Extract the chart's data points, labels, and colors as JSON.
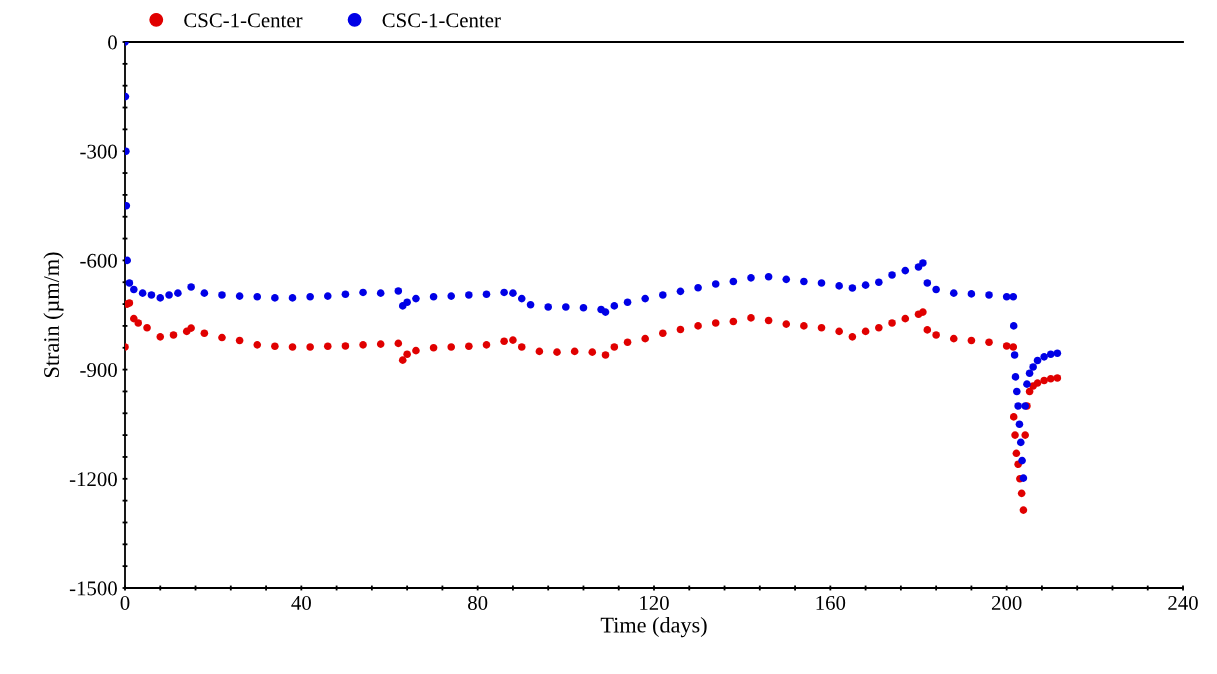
{
  "chart_data": {
    "type": "scatter",
    "xlabel": "Time (days)",
    "ylabel": "Strain (µm/m)",
    "xlim": [
      0,
      240
    ],
    "ylim": [
      -1500,
      0
    ],
    "xticks": [
      0,
      {
        "value": 8,
        "label": null
      },
      {
        "value": 16,
        "label": null
      },
      {
        "value": 24,
        "label": null
      },
      {
        "value": 32,
        "label": null
      },
      40,
      {
        "value": 48,
        "label": null
      },
      {
        "value": 56,
        "label": null
      },
      {
        "value": 64,
        "label": null
      },
      {
        "value": 72,
        "label": null
      },
      80,
      {
        "value": 88,
        "label": null
      },
      {
        "value": 96,
        "label": null
      },
      {
        "value": 104,
        "label": null
      },
      {
        "value": 112,
        "label": null
      },
      120,
      {
        "value": 128,
        "label": null
      },
      {
        "value": 136,
        "label": null
      },
      {
        "value": 144,
        "label": null
      },
      {
        "value": 152,
        "label": null
      },
      160,
      {
        "value": 168,
        "label": null
      },
      {
        "value": 176,
        "label": null
      },
      {
        "value": 184,
        "label": null
      },
      {
        "value": 192,
        "label": null
      },
      200,
      {
        "value": 208,
        "label": null
      },
      {
        "value": 216,
        "label": null
      },
      {
        "value": 224,
        "label": null
      },
      {
        "value": 232,
        "label": null
      },
      240
    ],
    "yticks": [
      -1500,
      {
        "value": -1440,
        "label": null
      },
      {
        "value": -1380,
        "label": null
      },
      {
        "value": -1320,
        "label": null
      },
      {
        "value": -1260,
        "label": null
      },
      -1200,
      {
        "value": -1140,
        "label": null
      },
      {
        "value": -1080,
        "label": null
      },
      {
        "value": -1020,
        "label": null
      },
      {
        "value": -960,
        "label": null
      },
      -900,
      {
        "value": -840,
        "label": null
      },
      {
        "value": -780,
        "label": null
      },
      {
        "value": -720,
        "label": null
      },
      {
        "value": -660,
        "label": null
      },
      -600,
      {
        "value": -540,
        "label": null
      },
      {
        "value": -480,
        "label": null
      },
      {
        "value": -420,
        "label": null
      },
      {
        "value": -360,
        "label": null
      },
      -300,
      {
        "value": -240,
        "label": null
      },
      {
        "value": -180,
        "label": null
      },
      {
        "value": -120,
        "label": null
      },
      {
        "value": -60,
        "label": null
      },
      0
    ],
    "grid": false,
    "legend": "top left",
    "marker": "circle",
    "series": [
      {
        "name": "CSC-1-Center",
        "color": "#e00000",
        "x": [
          0,
          0.5,
          1,
          2,
          3,
          5,
          8,
          11,
          14,
          15,
          18,
          22,
          26,
          30,
          34,
          38,
          42,
          46,
          50,
          54,
          58,
          62,
          63,
          64,
          66,
          70,
          74,
          78,
          82,
          86,
          88,
          90,
          94,
          98,
          102,
          106,
          109,
          111,
          114,
          118,
          122,
          126,
          130,
          134,
          138,
          142,
          146,
          150,
          154,
          158,
          162,
          165,
          168,
          171,
          174,
          177,
          180,
          181,
          182,
          184,
          188,
          192,
          196,
          200,
          201.5,
          201.6,
          201.9,
          202.2,
          202.6,
          203,
          203.4,
          203.8,
          204.2,
          204.6,
          205.2,
          206,
          207,
          208.5,
          210,
          211.5
        ],
        "values": [
          -838,
          -720,
          -717,
          -760,
          -772,
          -785,
          -810,
          -805,
          -795,
          -786,
          -800,
          -812,
          -820,
          -832,
          -836,
          -838,
          -838,
          -836,
          -835,
          -832,
          -830,
          -828,
          -874,
          -858,
          -848,
          -840,
          -838,
          -836,
          -832,
          -822,
          -819,
          -838,
          -850,
          -852,
          -850,
          -852,
          -860,
          -838,
          -825,
          -815,
          -800,
          -790,
          -780,
          -772,
          -768,
          -758,
          -765,
          -775,
          -780,
          -785,
          -795,
          -810,
          -795,
          -785,
          -772,
          -760,
          -748,
          -742,
          -791,
          -805,
          -815,
          -820,
          -825,
          -835,
          -838,
          -1030,
          -1080,
          -1130,
          -1160,
          -1200,
          -1240,
          -1286,
          -1080,
          -1000,
          -960,
          -945,
          -937,
          -930,
          -925,
          -923
        ]
      },
      {
        "name": "CSC-1-Center",
        "color": "#0000e6",
        "x": [
          0,
          0.1,
          0.2,
          0.3,
          0.5,
          1,
          2,
          4,
          6,
          8,
          10,
          12,
          15,
          18,
          22,
          26,
          30,
          34,
          38,
          42,
          46,
          50,
          54,
          58,
          62,
          63,
          64,
          66,
          70,
          74,
          78,
          82,
          86,
          88,
          90,
          92,
          96,
          100,
          104,
          108,
          109,
          111,
          114,
          118,
          122,
          126,
          130,
          134,
          138,
          142,
          146,
          150,
          154,
          158,
          162,
          165,
          168,
          171,
          174,
          177,
          180,
          181,
          182,
          184,
          188,
          192,
          196,
          200,
          201.5,
          201.6,
          201.8,
          202,
          202.3,
          202.6,
          202.9,
          203.2,
          203.5,
          203.8,
          204.2,
          204.6,
          205.2,
          206,
          207,
          208.5,
          210,
          211.5
        ],
        "values": [
          0,
          -150,
          -300,
          -450,
          -600,
          -662,
          -680,
          -690,
          -695,
          -703,
          -695,
          -690,
          -673,
          -690,
          -695,
          -698,
          -700,
          -703,
          -703,
          -700,
          -698,
          -693,
          -688,
          -690,
          -684,
          -725,
          -715,
          -705,
          -700,
          -698,
          -695,
          -693,
          -688,
          -690,
          -705,
          -722,
          -728,
          -728,
          -730,
          -735,
          -742,
          -725,
          -715,
          -705,
          -695,
          -685,
          -675,
          -665,
          -658,
          -648,
          -645,
          -652,
          -658,
          -662,
          -670,
          -676,
          -668,
          -660,
          -640,
          -628,
          -618,
          -607,
          -662,
          -680,
          -690,
          -692,
          -695,
          -700,
          -700,
          -780,
          -860,
          -920,
          -960,
          -1000,
          -1050,
          -1100,
          -1150,
          -1198,
          -1000,
          -940,
          -910,
          -893,
          -875,
          -865,
          -858,
          -855
        ]
      }
    ]
  }
}
